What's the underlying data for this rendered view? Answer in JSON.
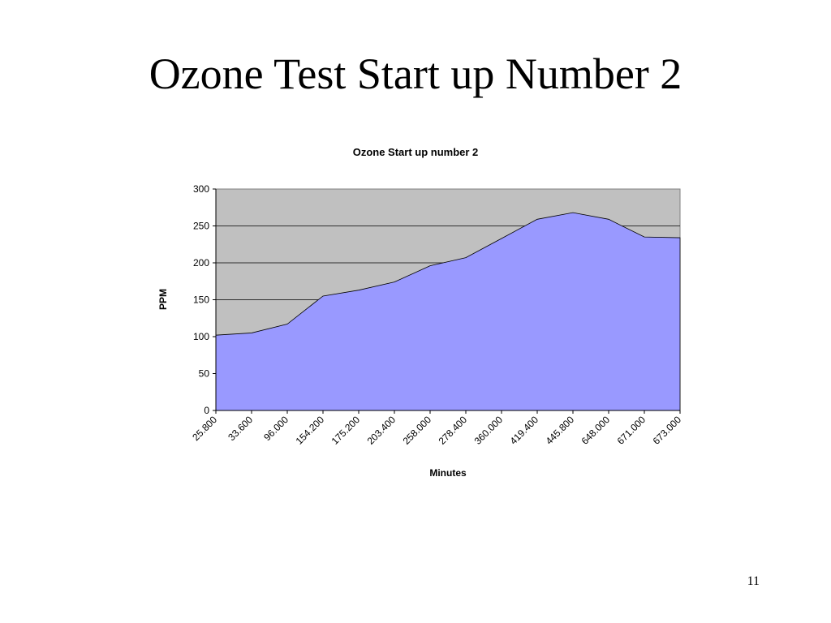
{
  "slide": {
    "title": "Ozone Test Start up Number 2",
    "page_number": "11"
  },
  "chart_data": {
    "type": "area",
    "title": "Ozone Start up number 2",
    "xlabel": "Minutes",
    "ylabel": "PPM",
    "ylim": [
      0,
      300
    ],
    "yticks": [
      "0",
      "50",
      "100",
      "150",
      "200",
      "250",
      "300"
    ],
    "grid": true,
    "categories": [
      "25.800",
      "33.600",
      "96.000",
      "154.200",
      "175.200",
      "203.400",
      "258.000",
      "278.400",
      "360.000",
      "419.400",
      "445.800",
      "648.000",
      "671.000",
      "673.000"
    ],
    "series": [
      {
        "values": [
          102,
          105,
          117,
          155,
          163,
          174,
          196,
          207,
          233,
          259,
          268,
          259,
          235,
          234
        ]
      }
    ],
    "colors": {
      "area_fill": "#9999ff",
      "plot_background": "#c0c0c0",
      "gridline": "#000000"
    }
  }
}
